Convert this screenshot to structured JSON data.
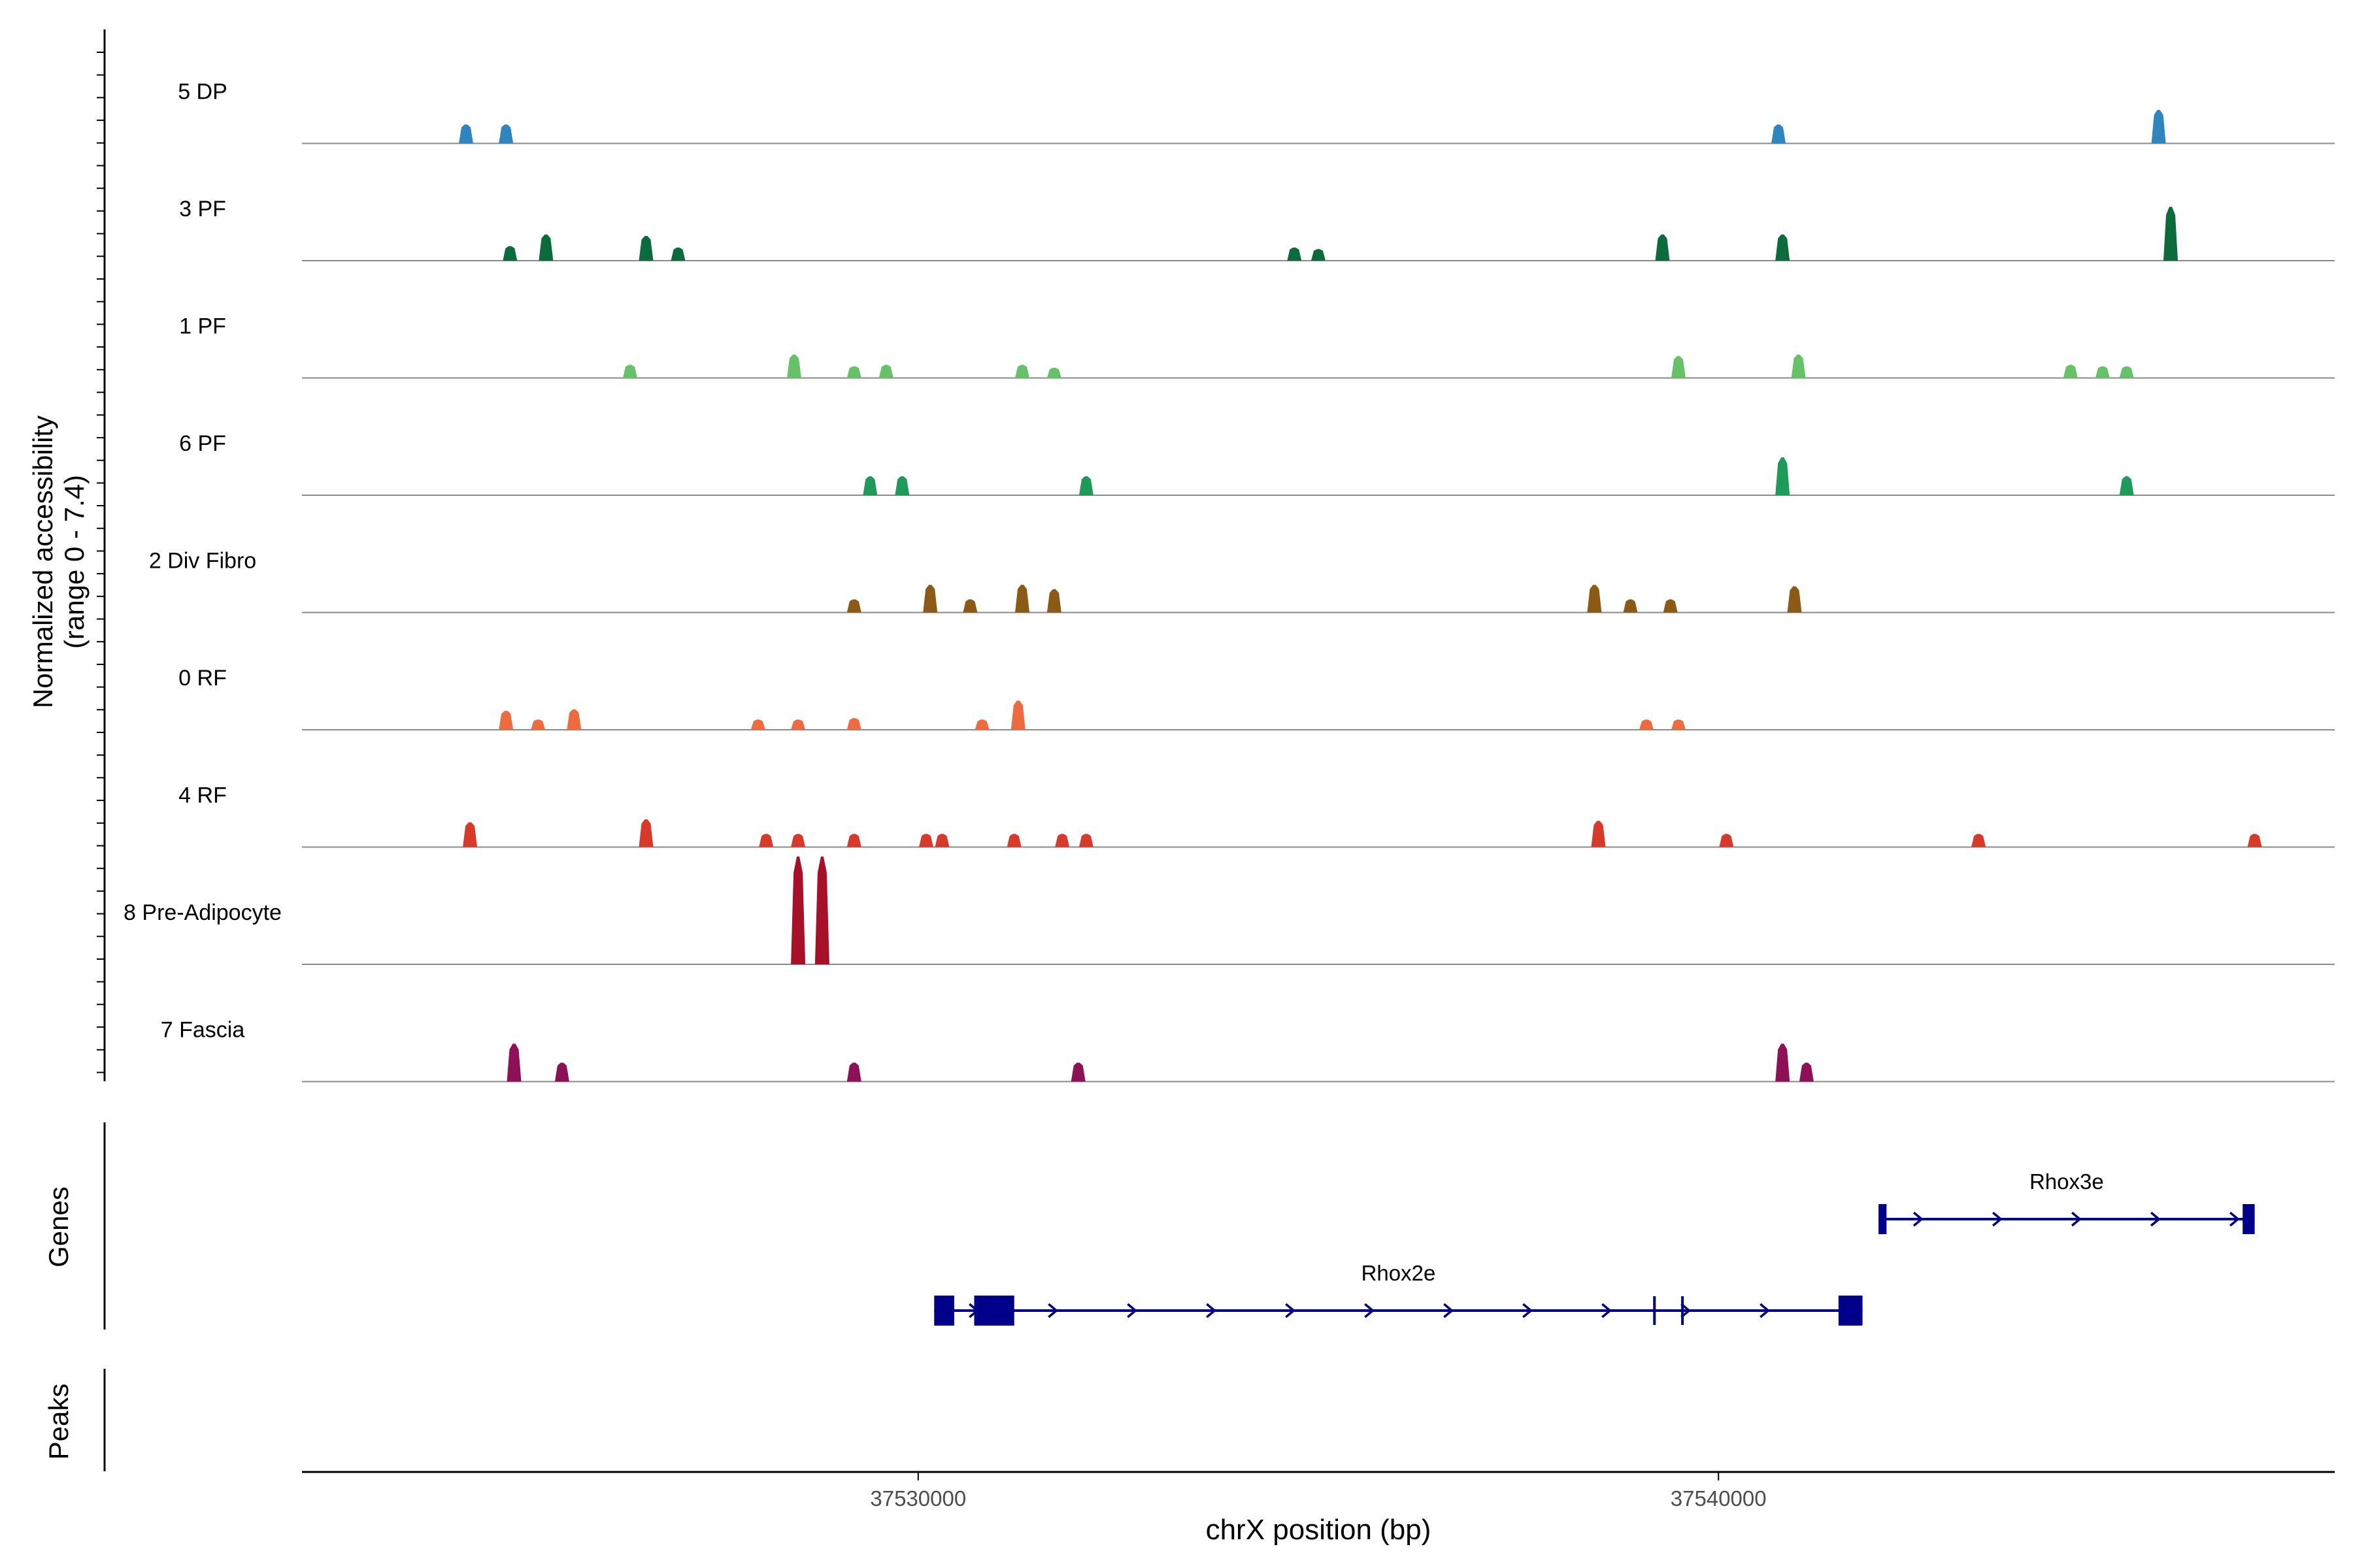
{
  "chart_data": {
    "type": "area",
    "title": "",
    "xlabel": "chrX position (bp)",
    "ylabel": [
      "Normalized accessibility",
      "(range 0 - 7.4)"
    ],
    "ylim": [
      0,
      7.4
    ],
    "xlim": [
      37522300,
      37547700
    ],
    "x_ticks": [
      {
        "value": 37530000,
        "label": "37530000"
      },
      {
        "value": 37540000,
        "label": "37540000"
      }
    ],
    "series": [
      {
        "name": "5 DP",
        "color": "#2E86C1",
        "peaks": [
          [
            37524350,
            1.3
          ],
          [
            37524850,
            1.3
          ],
          [
            37540750,
            1.3
          ],
          [
            37545500,
            2.3
          ]
        ]
      },
      {
        "name": "3 PF",
        "color": "#0B6B3A",
        "peaks": [
          [
            37524900,
            1.0
          ],
          [
            37525350,
            1.8
          ],
          [
            37526600,
            1.7
          ],
          [
            37527000,
            0.9
          ],
          [
            37534700,
            0.9
          ],
          [
            37535000,
            0.8
          ],
          [
            37539300,
            1.8
          ],
          [
            37540800,
            1.8
          ],
          [
            37545650,
            3.7
          ]
        ]
      },
      {
        "name": "1 PF",
        "color": "#66C266",
        "peaks": [
          [
            37526400,
            0.9
          ],
          [
            37528450,
            1.6
          ],
          [
            37529200,
            0.8
          ],
          [
            37529600,
            0.9
          ],
          [
            37531300,
            0.9
          ],
          [
            37531700,
            0.7
          ],
          [
            37539500,
            1.5
          ],
          [
            37541000,
            1.6
          ],
          [
            37544400,
            0.9
          ],
          [
            37544800,
            0.8
          ],
          [
            37545100,
            0.8
          ]
        ]
      },
      {
        "name": "6 PF",
        "color": "#1E9B58",
        "peaks": [
          [
            37529400,
            1.3
          ],
          [
            37529800,
            1.3
          ],
          [
            37532100,
            1.3
          ],
          [
            37540800,
            2.6
          ],
          [
            37545100,
            1.3
          ]
        ]
      },
      {
        "name": "2 Div Fibro",
        "color": "#8B5A14",
        "peaks": [
          [
            37529200,
            0.9
          ],
          [
            37530150,
            1.9
          ],
          [
            37530650,
            0.9
          ],
          [
            37531300,
            1.9
          ],
          [
            37531700,
            1.6
          ],
          [
            37538450,
            1.9
          ],
          [
            37538900,
            0.9
          ],
          [
            37539400,
            0.9
          ],
          [
            37540950,
            1.8
          ]
        ]
      },
      {
        "name": "0 RF",
        "color": "#EE6A3F",
        "peaks": [
          [
            37524850,
            1.3
          ],
          [
            37525250,
            0.7
          ],
          [
            37525700,
            1.4
          ],
          [
            37528000,
            0.7
          ],
          [
            37528500,
            0.7
          ],
          [
            37529200,
            0.8
          ],
          [
            37530800,
            0.7
          ],
          [
            37531250,
            2.0
          ],
          [
            37539100,
            0.7
          ],
          [
            37539500,
            0.7
          ]
        ]
      },
      {
        "name": "4 RF",
        "color": "#D83A2A",
        "peaks": [
          [
            37524400,
            1.7
          ],
          [
            37526600,
            1.9
          ],
          [
            37528100,
            0.9
          ],
          [
            37528500,
            0.9
          ],
          [
            37529200,
            0.9
          ],
          [
            37530100,
            0.9
          ],
          [
            37530300,
            0.9
          ],
          [
            37531200,
            0.9
          ],
          [
            37531800,
            0.9
          ],
          [
            37532100,
            0.9
          ],
          [
            37538500,
            1.8
          ],
          [
            37540100,
            0.9
          ],
          [
            37543250,
            0.9
          ],
          [
            37546700,
            0.9
          ]
        ]
      },
      {
        "name": "8 Pre-Adipocyte",
        "color": "#A8102A",
        "peaks": [
          [
            37528500,
            7.4
          ],
          [
            37528800,
            7.4
          ]
        ]
      },
      {
        "name": "7 Fascia",
        "color": "#8E1157",
        "peaks": [
          [
            37524950,
            2.6
          ],
          [
            37525550,
            1.3
          ],
          [
            37529200,
            1.3
          ],
          [
            37532000,
            1.3
          ],
          [
            37540800,
            2.6
          ],
          [
            37541100,
            1.3
          ]
        ]
      }
    ],
    "genes": [
      {
        "name": "Rhox2e",
        "label": "Rhox2e",
        "start": 37530200,
        "end": 37541800,
        "strand": "+",
        "exons": [
          [
            37530200,
            37530450
          ],
          [
            37530700,
            37531200
          ],
          [
            37541500,
            37541800
          ]
        ],
        "ticks": [
          37539200,
          37539550
        ]
      },
      {
        "name": "Rhox3e",
        "label": "Rhox3e",
        "start": 37542000,
        "end": 37546700,
        "strand": "+",
        "exons": [
          [
            37542000,
            37542100
          ],
          [
            37546550,
            37546700
          ]
        ],
        "ticks": []
      }
    ],
    "side_labels": {
      "genes": "Genes",
      "peaks": "Peaks"
    }
  }
}
